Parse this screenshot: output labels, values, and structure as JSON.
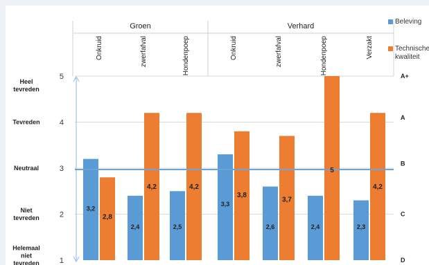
{
  "chart_data": {
    "type": "bar",
    "group_labels": [
      "Groen",
      "Verhard"
    ],
    "categories": [
      "Onkruid",
      "zwerfafval",
      "Hondenpoep",
      "Onkruid",
      "zwerfafval",
      "Hondenpoep",
      "Verzakt"
    ],
    "category_group": [
      0,
      0,
      0,
      1,
      1,
      1,
      1
    ],
    "series": [
      {
        "name": "Beleving",
        "color": "#5b9bd5",
        "values": [
          3.2,
          2.4,
          2.5,
          3.3,
          2.6,
          2.4,
          2.3
        ],
        "labels": [
          "3,2",
          "2,4",
          "2,5",
          "3,3",
          "2,6",
          "2,4",
          "2,3"
        ]
      },
      {
        "name": "Technische kwaliteit",
        "color": "#ed7d31",
        "values": [
          2.8,
          4.2,
          4.2,
          3.8,
          3.7,
          5.0,
          4.2
        ],
        "labels": [
          "2,8",
          "4,2",
          "4,2",
          "3,8",
          "3,7",
          "5",
          "4,2"
        ]
      }
    ],
    "ylim": [
      1,
      5
    ],
    "y_ticks": [
      "1",
      "2",
      "3",
      "4",
      "5"
    ],
    "left_labels": [
      {
        "value": 4.8,
        "lines": [
          "Heel",
          "tevreden"
        ]
      },
      {
        "value": 4.0,
        "lines": [
          "Tevreden"
        ]
      },
      {
        "value": 3.0,
        "lines": [
          "Neutraal"
        ]
      },
      {
        "value": 2.0,
        "lines": [
          "Niet",
          "tevreden"
        ]
      },
      {
        "value": 1.1,
        "lines": [
          "Helemaal",
          "niet",
          "tevreden"
        ]
      }
    ],
    "right_labels": [
      {
        "value": 5.0,
        "text": "A+"
      },
      {
        "value": 4.1,
        "text": "A"
      },
      {
        "value": 3.1,
        "text": "B"
      },
      {
        "value": 2.0,
        "text": "C"
      },
      {
        "value": 1.0,
        "text": "D"
      }
    ],
    "reference_line": 2.97,
    "grid": true,
    "legend_position": "top-right"
  }
}
